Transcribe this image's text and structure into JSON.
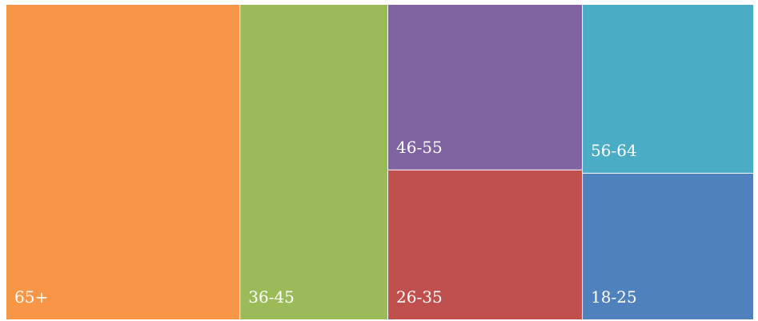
{
  "chart_data": {
    "type": "treemap",
    "title": "",
    "categories": [
      "65+",
      "36-45",
      "46-55",
      "26-35",
      "56-64",
      "18-25"
    ],
    "values": [
      291,
      184,
      127,
      115,
      114,
      99
    ],
    "colors": [
      "#F79646",
      "#9BBB59",
      "#8064A2",
      "#C0504D",
      "#4BACC6",
      "#4F81BD"
    ],
    "data_labels": true,
    "legend": "none",
    "grid": false
  }
}
